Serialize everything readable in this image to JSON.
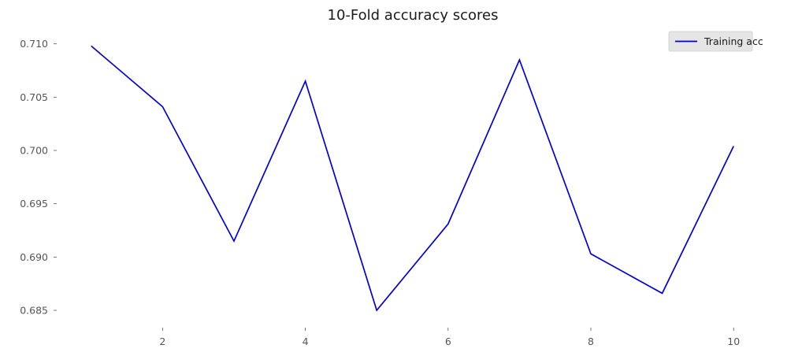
{
  "chart_data": {
    "type": "line",
    "title": "10-Fold accuracy scores",
    "xlabel": "",
    "ylabel": "",
    "x": [
      1,
      2,
      3,
      4,
      5,
      6,
      7,
      8,
      9,
      10
    ],
    "series": [
      {
        "name": "Training acc",
        "color": "#0000dd",
        "values": [
          0.7098,
          0.7041,
          0.6915,
          0.7065,
          0.685,
          0.6931,
          0.7085,
          0.6903,
          0.6866,
          0.7004
        ]
      }
    ],
    "xlim": [
      0.55,
      10.45
    ],
    "ylim": [
      0.6836,
      0.7116
    ],
    "x_ticks": [
      2,
      4,
      6,
      8,
      10
    ],
    "x_tick_labels": [
      "2",
      "4",
      "6",
      "8",
      "10"
    ],
    "y_ticks": [
      0.685,
      0.69,
      0.695,
      0.7,
      0.705,
      0.71
    ],
    "y_tick_labels": [
      "0.685",
      "0.690",
      "0.695",
      "0.700",
      "0.705",
      "0.710"
    ],
    "grid": false,
    "legend": {
      "position": "upper-right",
      "entries": [
        "Training acc"
      ]
    }
  }
}
